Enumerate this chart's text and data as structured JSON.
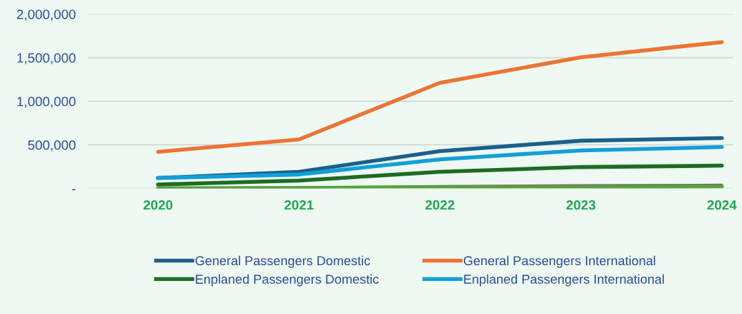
{
  "chart_data": {
    "type": "line",
    "categories": [
      "2020",
      "2021",
      "2022",
      "2023",
      "2024"
    ],
    "series": [
      {
        "name": "General Passengers Domestic",
        "color": "#1a6189",
        "values": [
          119000,
          190000,
          428000,
          547000,
          578000
        ]
      },
      {
        "name": "General Passengers International",
        "color": "#ec7434",
        "values": [
          420000,
          562000,
          1212000,
          1505000,
          1679000
        ]
      },
      {
        "name": "Enplaned Passengers Domestic",
        "color": "#1d6b25",
        "values": [
          45000,
          90000,
          190000,
          245000,
          261000
        ]
      },
      {
        "name": "Enplaned Passengers International",
        "color": "#129fd8",
        "values": [
          119000,
          160000,
          333000,
          436000,
          475000
        ]
      },
      {
        "color": "#9b3fa0",
        "values": [
          5000,
          10000,
          25000,
          35000,
          40000
        ]
      },
      {
        "color": "#52a535",
        "values": [
          3000,
          5000,
          12000,
          18000,
          22000
        ]
      }
    ],
    "ylim": [
      0,
      2000000
    ],
    "yticks": [
      {
        "value": 0,
        "label": "-"
      },
      {
        "value": 500000,
        "label": "500,000"
      },
      {
        "value": 1000000,
        "label": "1,000,000"
      },
      {
        "value": 1500000,
        "label": "1,500,000"
      },
      {
        "value": 2000000,
        "label": "2,000,000"
      }
    ],
    "grid": "y",
    "legend": "bottom",
    "marker": "none",
    "line_style": "solid"
  }
}
